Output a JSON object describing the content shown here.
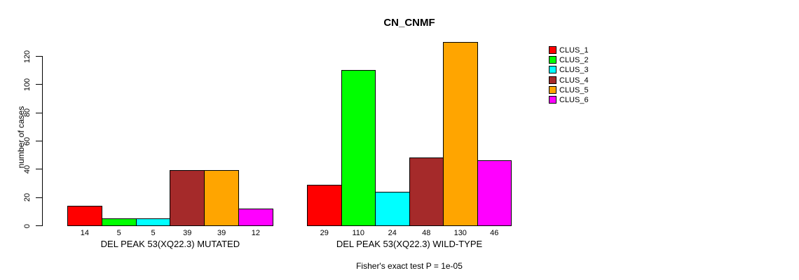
{
  "figure": {
    "title": "CN_CNMF",
    "annotation": "Fisher's exact test P = 1e-05"
  },
  "chart_data": {
    "type": "bar",
    "title": "CN_CNMF",
    "xlabel": "",
    "ylabel": "number of cases",
    "ylim": [
      0,
      130
    ],
    "yticks": [
      0,
      20,
      40,
      60,
      80,
      100,
      120
    ],
    "grid": false,
    "legend_position": "right",
    "categories": [
      "DEL PEAK 53(XQ22.3) MUTATED",
      "DEL PEAK 53(XQ22.3) WILD-TYPE"
    ],
    "groups": [
      {
        "label": "DEL PEAK 53(XQ22.3) MUTATED",
        "values": [
          14,
          5,
          5,
          39,
          39,
          12
        ]
      },
      {
        "label": "DEL PEAK 53(XQ22.3) WILD-TYPE",
        "values": [
          29,
          110,
          24,
          48,
          130,
          46
        ]
      }
    ],
    "series": [
      {
        "name": "CLUS_1",
        "color": "#FF0000",
        "values": [
          14,
          29
        ]
      },
      {
        "name": "CLUS_2",
        "color": "#00FF00",
        "values": [
          5,
          110
        ]
      },
      {
        "name": "CLUS_3",
        "color": "#00FFFF",
        "values": [
          5,
          24
        ]
      },
      {
        "name": "CLUS_4",
        "color": "#A52A2A",
        "values": [
          39,
          48
        ]
      },
      {
        "name": "CLUS_5",
        "color": "#FFA500",
        "values": [
          39,
          130
        ]
      },
      {
        "name": "CLUS_6",
        "color": "#FF00FF",
        "values": [
          12,
          46
        ]
      }
    ],
    "annotation": "Fisher's exact test P = 1e-05"
  }
}
